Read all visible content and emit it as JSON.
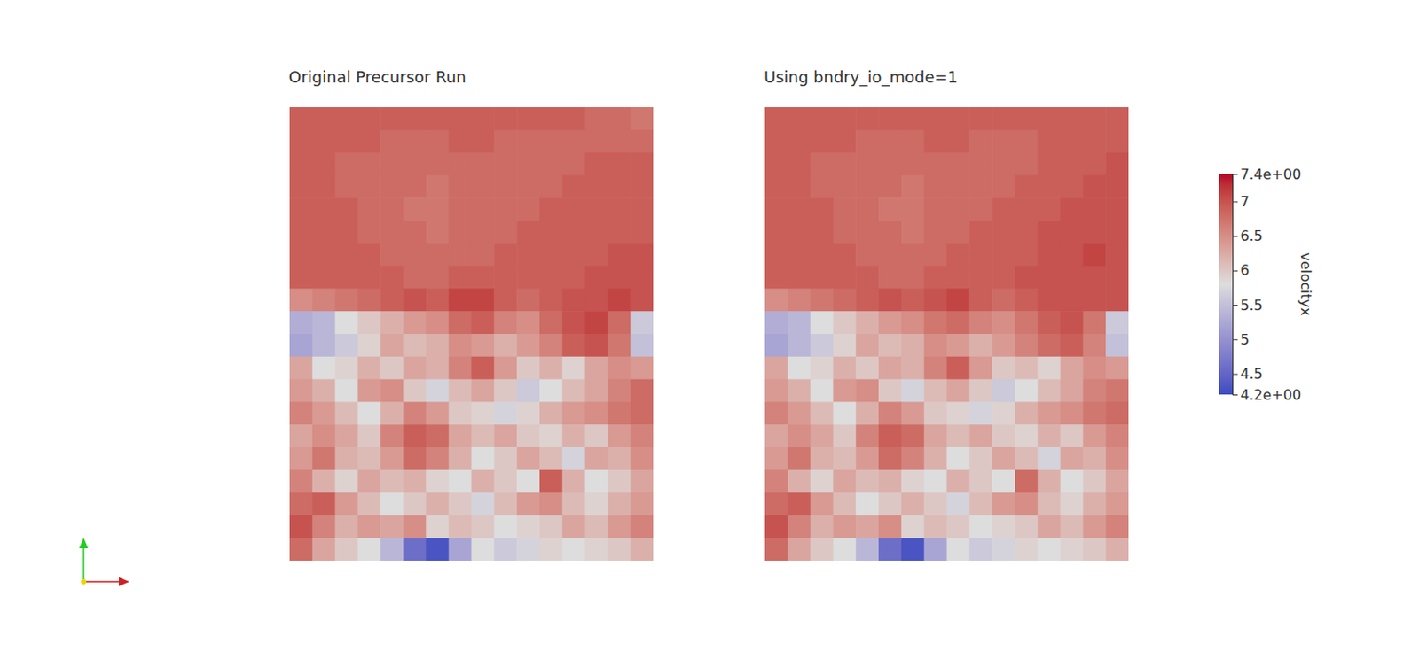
{
  "chart_data": [
    {
      "type": "heatmap",
      "title": "Original Precursor Run",
      "tick_labels": false,
      "cells": [
        [
          6.9,
          6.9,
          6.9,
          6.9,
          6.9,
          6.9,
          6.9,
          6.9,
          6.9,
          6.9,
          6.9,
          6.9,
          6.9,
          6.8,
          6.8,
          6.7
        ],
        [
          6.9,
          6.9,
          6.9,
          6.9,
          6.8,
          6.8,
          6.8,
          6.9,
          6.9,
          6.8,
          6.8,
          6.8,
          6.8,
          6.8,
          6.8,
          6.8
        ],
        [
          6.9,
          6.9,
          6.8,
          6.8,
          6.8,
          6.8,
          6.8,
          6.8,
          6.8,
          6.8,
          6.8,
          6.8,
          6.8,
          6.9,
          6.9,
          6.9
        ],
        [
          6.9,
          6.9,
          6.8,
          6.8,
          6.8,
          6.8,
          6.7,
          6.8,
          6.8,
          6.8,
          6.8,
          6.8,
          6.9,
          6.9,
          6.9,
          6.9
        ],
        [
          6.9,
          6.9,
          6.9,
          6.8,
          6.8,
          6.7,
          6.7,
          6.8,
          6.8,
          6.8,
          6.8,
          6.9,
          6.9,
          6.9,
          6.9,
          6.9
        ],
        [
          6.9,
          6.9,
          6.9,
          6.8,
          6.8,
          6.8,
          6.7,
          6.8,
          6.8,
          6.8,
          6.9,
          6.9,
          6.9,
          6.9,
          6.9,
          6.9
        ],
        [
          6.9,
          6.9,
          6.9,
          6.9,
          6.8,
          6.8,
          6.8,
          6.8,
          6.8,
          6.9,
          6.9,
          6.9,
          6.9,
          6.9,
          7.0,
          7.0
        ],
        [
          6.9,
          6.9,
          6.9,
          6.9,
          6.9,
          6.8,
          6.8,
          6.9,
          6.9,
          6.9,
          6.9,
          6.9,
          6.9,
          7.0,
          7.0,
          7.0
        ],
        [
          6.5,
          6.6,
          6.7,
          6.8,
          6.9,
          7.0,
          6.9,
          7.1,
          7.1,
          6.9,
          6.8,
          6.9,
          7.0,
          7.0,
          7.1,
          7.0
        ],
        [
          5.3,
          5.4,
          5.8,
          6.0,
          6.2,
          6.4,
          6.5,
          6.8,
          6.9,
          6.6,
          6.5,
          6.8,
          7.0,
          7.1,
          6.8,
          5.6
        ],
        [
          5.2,
          5.4,
          5.6,
          5.9,
          6.3,
          6.1,
          6.2,
          6.5,
          6.4,
          6.2,
          6.4,
          6.6,
          6.9,
          7.0,
          6.7,
          5.5
        ],
        [
          6.3,
          5.8,
          5.9,
          6.2,
          6.0,
          6.3,
          6.2,
          6.6,
          6.9,
          6.4,
          6.0,
          6.2,
          5.9,
          6.3,
          6.5,
          6.4
        ],
        [
          6.4,
          6.2,
          5.8,
          6.4,
          6.5,
          6.0,
          5.7,
          6.1,
          6.3,
          6.0,
          5.6,
          5.8,
          6.1,
          6.3,
          6.6,
          6.8
        ],
        [
          6.6,
          6.4,
          6.1,
          5.8,
          6.2,
          6.6,
          6.4,
          6.0,
          5.9,
          5.7,
          5.9,
          6.2,
          6.4,
          6.5,
          6.7,
          6.8
        ],
        [
          6.3,
          6.5,
          6.3,
          6.0,
          6.6,
          6.9,
          6.8,
          6.3,
          6.1,
          6.3,
          6.0,
          5.9,
          6.2,
          6.0,
          6.4,
          6.6
        ],
        [
          6.4,
          6.7,
          6.2,
          6.1,
          6.4,
          6.8,
          6.6,
          6.2,
          5.8,
          6.0,
          6.3,
          6.1,
          5.7,
          6.3,
          6.2,
          6.5
        ],
        [
          6.6,
          6.2,
          5.9,
          6.3,
          6.1,
          6.2,
          5.9,
          5.8,
          6.2,
          6.0,
          5.8,
          6.9,
          6.2,
          5.8,
          6.0,
          6.3
        ],
        [
          6.8,
          6.9,
          6.4,
          6.1,
          5.8,
          6.0,
          6.2,
          6.0,
          5.7,
          6.1,
          6.4,
          6.5,
          6.1,
          5.9,
          6.2,
          6.4
        ],
        [
          7.0,
          6.6,
          6.2,
          6.4,
          6.3,
          6.5,
          5.9,
          6.1,
          6.0,
          5.8,
          5.9,
          6.0,
          6.3,
          6.1,
          6.4,
          6.6
        ],
        [
          6.8,
          6.3,
          6.0,
          5.8,
          5.4,
          4.6,
          4.3,
          5.2,
          5.8,
          5.6,
          5.7,
          5.9,
          5.8,
          5.9,
          6.0,
          6.2
        ]
      ]
    },
    {
      "type": "heatmap",
      "title": "Using bndry_io_mode=1",
      "tick_labels": false,
      "cells": [
        [
          6.9,
          6.9,
          6.9,
          6.9,
          6.9,
          6.9,
          6.9,
          6.9,
          6.9,
          6.9,
          6.9,
          6.9,
          6.9,
          6.9,
          6.9,
          6.9
        ],
        [
          6.9,
          6.9,
          6.9,
          6.9,
          6.8,
          6.8,
          6.8,
          6.9,
          6.9,
          6.8,
          6.8,
          6.8,
          6.9,
          6.9,
          6.9,
          6.9
        ],
        [
          6.9,
          6.9,
          6.8,
          6.8,
          6.8,
          6.8,
          6.8,
          6.8,
          6.8,
          6.8,
          6.8,
          6.8,
          6.9,
          6.9,
          6.9,
          7.0
        ],
        [
          6.9,
          6.9,
          6.8,
          6.8,
          6.8,
          6.8,
          6.7,
          6.8,
          6.8,
          6.8,
          6.8,
          6.9,
          6.9,
          6.9,
          7.0,
          7.0
        ],
        [
          6.9,
          6.9,
          6.9,
          6.8,
          6.8,
          6.7,
          6.7,
          6.8,
          6.8,
          6.8,
          6.9,
          6.9,
          6.9,
          7.0,
          7.0,
          7.0
        ],
        [
          6.9,
          6.9,
          6.9,
          6.8,
          6.8,
          6.8,
          6.7,
          6.8,
          6.8,
          6.9,
          6.9,
          6.9,
          7.0,
          7.0,
          7.0,
          7.0
        ],
        [
          6.9,
          6.9,
          6.9,
          6.9,
          6.8,
          6.8,
          6.8,
          6.8,
          6.9,
          6.9,
          6.9,
          6.9,
          7.0,
          7.0,
          7.1,
          7.0
        ],
        [
          6.9,
          6.9,
          6.9,
          6.9,
          6.9,
          6.8,
          6.8,
          6.9,
          6.9,
          6.9,
          6.9,
          7.0,
          7.0,
          7.0,
          7.0,
          7.0
        ],
        [
          6.5,
          6.6,
          6.7,
          6.8,
          6.9,
          7.0,
          6.9,
          7.0,
          7.1,
          6.9,
          6.8,
          6.9,
          7.0,
          7.0,
          7.0,
          7.0
        ],
        [
          5.3,
          5.4,
          5.8,
          6.0,
          6.2,
          6.4,
          6.5,
          6.7,
          6.8,
          6.6,
          6.5,
          6.7,
          6.9,
          7.0,
          6.7,
          5.6
        ],
        [
          5.2,
          5.4,
          5.6,
          5.9,
          6.3,
          6.1,
          6.2,
          6.5,
          6.4,
          6.2,
          6.4,
          6.6,
          6.8,
          6.9,
          6.6,
          5.5
        ],
        [
          6.3,
          5.8,
          5.9,
          6.2,
          6.0,
          6.3,
          6.2,
          6.6,
          6.9,
          6.4,
          6.0,
          6.1,
          5.9,
          6.3,
          6.5,
          6.4
        ],
        [
          6.4,
          6.2,
          5.8,
          6.4,
          6.5,
          6.0,
          5.7,
          6.1,
          6.3,
          6.0,
          5.6,
          5.8,
          6.1,
          6.3,
          6.6,
          6.7
        ],
        [
          6.6,
          6.4,
          6.1,
          5.8,
          6.2,
          6.6,
          6.4,
          6.0,
          5.9,
          5.7,
          5.9,
          6.2,
          6.4,
          6.5,
          6.7,
          6.8
        ],
        [
          6.3,
          6.5,
          6.3,
          6.0,
          6.6,
          6.9,
          6.8,
          6.3,
          6.1,
          6.3,
          6.0,
          5.9,
          6.2,
          6.0,
          6.4,
          6.6
        ],
        [
          6.4,
          6.7,
          6.2,
          6.1,
          6.4,
          6.8,
          6.6,
          6.2,
          5.8,
          6.0,
          6.3,
          6.1,
          5.7,
          6.3,
          6.2,
          6.5
        ],
        [
          6.6,
          6.2,
          5.9,
          6.3,
          6.1,
          6.2,
          5.9,
          5.8,
          6.2,
          6.0,
          5.8,
          6.8,
          6.2,
          5.8,
          6.0,
          6.3
        ],
        [
          6.8,
          6.9,
          6.4,
          6.1,
          5.8,
          6.0,
          6.2,
          6.0,
          5.7,
          6.1,
          6.4,
          6.5,
          6.1,
          5.9,
          6.2,
          6.4
        ],
        [
          7.0,
          6.6,
          6.2,
          6.4,
          6.3,
          6.5,
          5.9,
          6.1,
          6.0,
          5.8,
          5.9,
          6.0,
          6.3,
          6.1,
          6.4,
          6.6
        ],
        [
          6.8,
          6.3,
          6.0,
          5.8,
          5.4,
          4.6,
          4.3,
          5.2,
          5.8,
          5.6,
          5.7,
          5.9,
          5.8,
          5.9,
          6.0,
          6.2
        ]
      ]
    }
  ],
  "colorbar": {
    "label": "velocityx",
    "range": [
      4.2,
      7.4
    ],
    "ticks": [
      {
        "value": 4.2,
        "label": "4.2e+00"
      },
      4.5,
      5,
      5.5,
      6,
      6.5,
      7,
      {
        "value": 7.4,
        "label": "7.4e+00"
      }
    ]
  }
}
